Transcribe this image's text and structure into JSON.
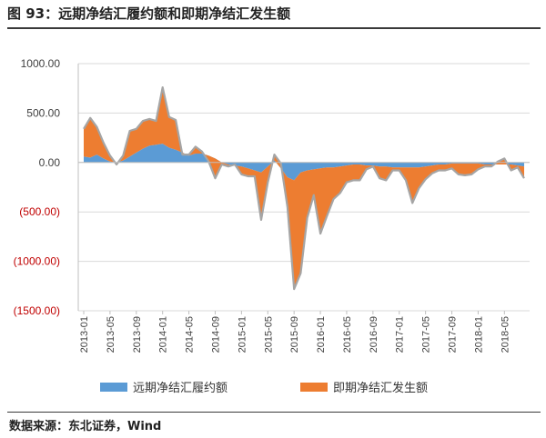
{
  "header": {
    "title": "图 93：远期净结汇履约额和即期净结汇发生额"
  },
  "footer": {
    "source": "数据来源：东北证券，Wind"
  },
  "colors": {
    "forward": "#5b9bd5",
    "spot": "#ed7d31",
    "outline": "#a5a5a5",
    "negative_label": "#c00000"
  },
  "chart_data": {
    "type": "area",
    "title": "",
    "xlabel": "",
    "ylabel": "",
    "ylim": [
      -1500,
      1000
    ],
    "yticks": [
      1000,
      500,
      0,
      -500,
      -1000,
      -1500
    ],
    "ytick_labels": [
      "1000.00",
      "500.00",
      "0.00",
      "(500.00)",
      "(1000.00)",
      "(1500.00)"
    ],
    "xtick_labels": [
      "2013-01",
      "2013-05",
      "2013-09",
      "2014-01",
      "2014-05",
      "2014-09",
      "2015-01",
      "2015-05",
      "2015-09",
      "2016-01",
      "2016-05",
      "2016-09",
      "2017-01",
      "2017-05",
      "2017-09",
      "2018-01",
      "2018-05"
    ],
    "grid": true,
    "legend": "bottom",
    "x": [
      "2013-01",
      "2013-02",
      "2013-03",
      "2013-04",
      "2013-05",
      "2013-06",
      "2013-07",
      "2013-08",
      "2013-09",
      "2013-10",
      "2013-11",
      "2013-12",
      "2014-01",
      "2014-02",
      "2014-03",
      "2014-04",
      "2014-05",
      "2014-06",
      "2014-07",
      "2014-08",
      "2014-09",
      "2014-10",
      "2014-11",
      "2014-12",
      "2015-01",
      "2015-02",
      "2015-03",
      "2015-04",
      "2015-05",
      "2015-06",
      "2015-07",
      "2015-08",
      "2015-09",
      "2015-10",
      "2015-11",
      "2015-12",
      "2016-01",
      "2016-02",
      "2016-03",
      "2016-04",
      "2016-05",
      "2016-06",
      "2016-07",
      "2016-08",
      "2016-09",
      "2016-10",
      "2016-11",
      "2016-12",
      "2017-01",
      "2017-02",
      "2017-03",
      "2017-04",
      "2017-05",
      "2017-06",
      "2017-07",
      "2017-08",
      "2017-09",
      "2017-10",
      "2017-11",
      "2017-12",
      "2018-01",
      "2018-02",
      "2018-03",
      "2018-04",
      "2018-05",
      "2018-06",
      "2018-07",
      "2018-08"
    ],
    "series": [
      {
        "name": "远期净结汇履约额",
        "values": [
          60,
          50,
          80,
          40,
          10,
          0,
          20,
          60,
          100,
          140,
          170,
          180,
          190,
          150,
          130,
          100,
          70,
          90,
          90,
          70,
          40,
          0,
          -20,
          -30,
          -40,
          -60,
          -80,
          -100,
          -40,
          20,
          -60,
          -150,
          -180,
          -100,
          -80,
          -70,
          -60,
          -50,
          -50,
          -40,
          -30,
          -20,
          -20,
          -30,
          -30,
          -40,
          -40,
          -50,
          -50,
          -50,
          -50,
          -50,
          -40,
          -30,
          -20,
          -20,
          -10,
          -10,
          -10,
          -10,
          -10,
          -20,
          -20,
          -20,
          -20,
          -20,
          -30,
          -40
        ]
      },
      {
        "name": "即期净结汇发生额",
        "values": [
          280,
          400,
          280,
          160,
          60,
          -20,
          50,
          260,
          240,
          280,
          270,
          240,
          570,
          310,
          300,
          -20,
          10,
          70,
          20,
          -60,
          -200,
          -20,
          -20,
          10,
          -80,
          -80,
          -60,
          -480,
          -160,
          60,
          50,
          -300,
          -1100,
          -1020,
          -480,
          -260,
          -660,
          -490,
          -320,
          -270,
          -170,
          -160,
          -160,
          -40,
          -10,
          -120,
          -140,
          -30,
          -30,
          -130,
          -360,
          -210,
          -130,
          -80,
          -60,
          -60,
          -50,
          -110,
          -120,
          -110,
          -60,
          -20,
          -20,
          30,
          60,
          -60,
          -20,
          -120
        ]
      },
      {
        "name": "total",
        "values": [
          340,
          450,
          360,
          200,
          70,
          -20,
          70,
          320,
          340,
          420,
          440,
          420,
          760,
          460,
          430,
          80,
          80,
          160,
          110,
          10,
          -160,
          -20,
          -40,
          -20,
          -120,
          -140,
          -140,
          -580,
          -200,
          80,
          -10,
          -450,
          -1280,
          -1120,
          -560,
          -330,
          -720,
          -540,
          -370,
          -310,
          -200,
          -180,
          -180,
          -70,
          -40,
          -160,
          -180,
          -80,
          -80,
          -180,
          -410,
          -260,
          -170,
          -110,
          -80,
          -80,
          -60,
          -120,
          -130,
          -120,
          -70,
          -40,
          -40,
          10,
          40,
          -80,
          -50,
          -160
        ]
      }
    ]
  },
  "legend": {
    "forward_label": "远期净结汇履约额",
    "spot_label": "即期净结汇发生额"
  }
}
